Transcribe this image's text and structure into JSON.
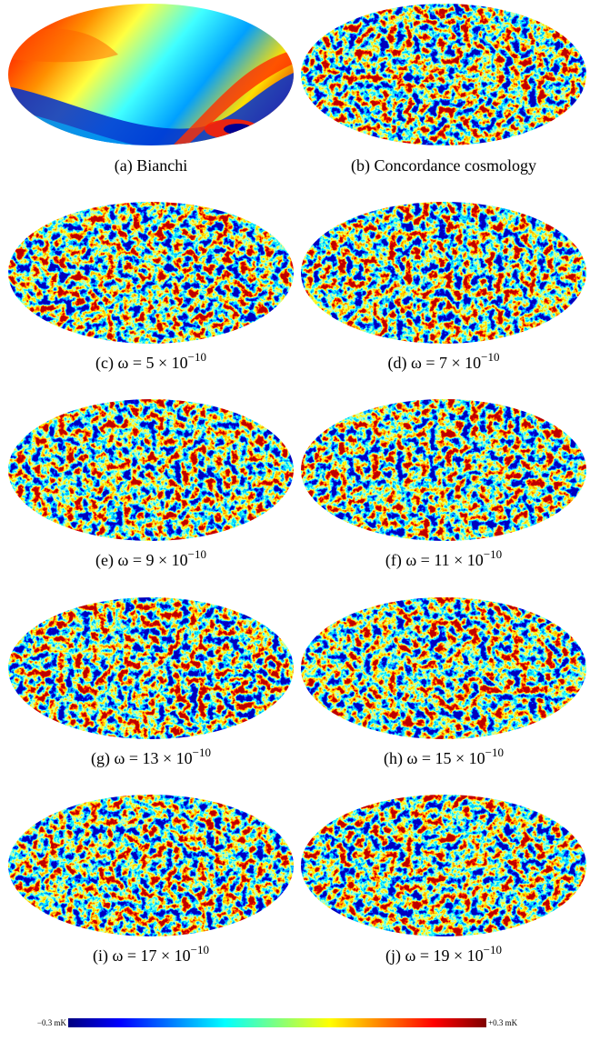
{
  "panels": [
    {
      "label": "(a)",
      "text": "Bianchi"
    },
    {
      "label": "(b)",
      "text": "Concordance cosmology"
    },
    {
      "label": "(c)",
      "math": "ω = 5 × 10",
      "exponent": "−10"
    },
    {
      "label": "(d)",
      "math": "ω = 7 × 10",
      "exponent": "−10"
    },
    {
      "label": "(e)",
      "math": "ω = 9 × 10",
      "exponent": "−10"
    },
    {
      "label": "(f)",
      "math": "ω = 11 × 10",
      "exponent": "−10"
    },
    {
      "label": "(g)",
      "math": "ω = 13 × 10",
      "exponent": "−10"
    },
    {
      "label": "(h)",
      "math": "ω = 15 × 10",
      "exponent": "−10"
    },
    {
      "label": "(i)",
      "math": "ω = 17 × 10",
      "exponent": "−10"
    },
    {
      "label": "(j)",
      "math": "ω = 19 × 10",
      "exponent": "−10"
    }
  ],
  "colorbar": {
    "min_label": "−0.3 mK",
    "max_label": "+0.3 mK"
  }
}
